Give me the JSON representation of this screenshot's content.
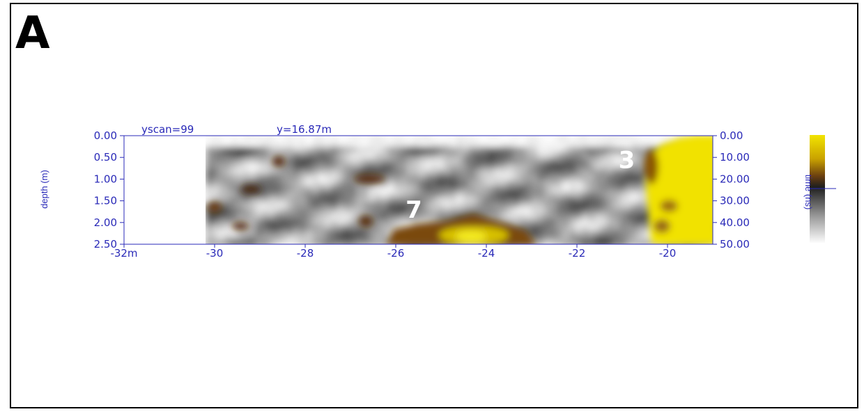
{
  "panel_label": "A",
  "chart_data": {
    "type": "heatmap",
    "header": {
      "scan_label": "yscan=99",
      "position_label": "y=16.87m"
    },
    "ylabel": "depth (m)",
    "colorbar_label": "time (ns)",
    "x_ticks": [
      "-32m",
      "-30",
      "-28",
      "-26",
      "-24",
      "-22",
      "-20"
    ],
    "x_tick_values": [
      -32,
      -30,
      -28,
      -26,
      -24,
      -22,
      -20
    ],
    "xlim": [
      -32,
      -19
    ],
    "y_ticks_left": [
      "0.00",
      "0.50",
      "1.00",
      "1.50",
      "2.00",
      "2.50"
    ],
    "y_tick_values": [
      0,
      0.5,
      1.0,
      1.5,
      2.0,
      2.5
    ],
    "ylim": [
      0,
      2.5
    ],
    "y_ticks_right": [
      "0.00",
      "10.00",
      "20.00",
      "30.00",
      "40.00",
      "50.00"
    ],
    "data_start_x": -30.2,
    "annotations": [
      {
        "text": "3",
        "x": -20.9,
        "y": 0.55
      },
      {
        "text": "7",
        "x": -25.6,
        "y": 1.7
      }
    ],
    "colors": {
      "high": "#f2e400",
      "mid": "#8a5a10",
      "low": "#2a2a2a",
      "zero": "#ffffff",
      "axis": "#2a2ab8"
    }
  }
}
